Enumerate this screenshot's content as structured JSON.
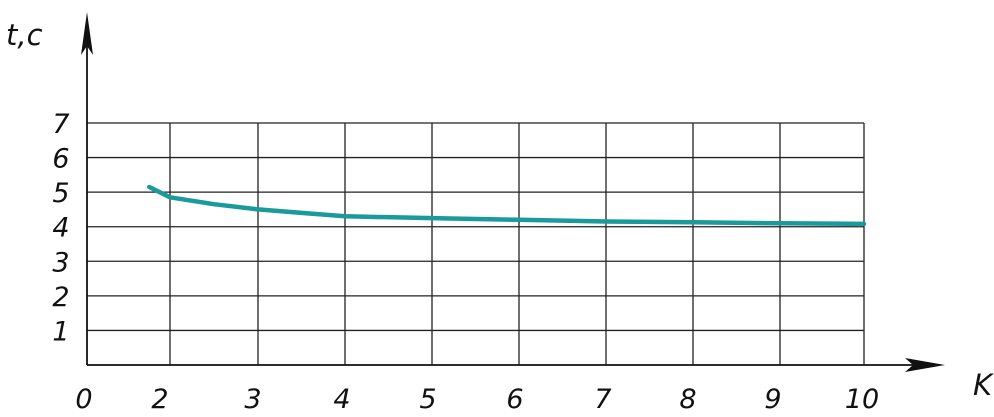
{
  "chart_data": {
    "type": "line",
    "xlabel": "K",
    "ylabel": "t,c",
    "x_ticks": [
      "0",
      "2",
      "3",
      "4",
      "5",
      "6",
      "7",
      "8",
      "9",
      "10"
    ],
    "y_ticks": [
      "1",
      "2",
      "3",
      "4",
      "5",
      "6",
      "7"
    ],
    "ylim": [
      0,
      7
    ],
    "grid": true,
    "series": [
      {
        "color": "#1a9a9a",
        "points": [
          {
            "x": 1.5,
            "y": 5.15
          },
          {
            "x": 2,
            "y": 4.85
          },
          {
            "x": 2.5,
            "y": 4.65
          },
          {
            "x": 3,
            "y": 4.5
          },
          {
            "x": 3.5,
            "y": 4.4
          },
          {
            "x": 4,
            "y": 4.3
          },
          {
            "x": 5,
            "y": 4.25
          },
          {
            "x": 6,
            "y": 4.2
          },
          {
            "x": 7,
            "y": 4.15
          },
          {
            "x": 8,
            "y": 4.13
          },
          {
            "x": 9,
            "y": 4.1
          },
          {
            "x": 10,
            "y": 4.08
          }
        ]
      }
    ]
  }
}
